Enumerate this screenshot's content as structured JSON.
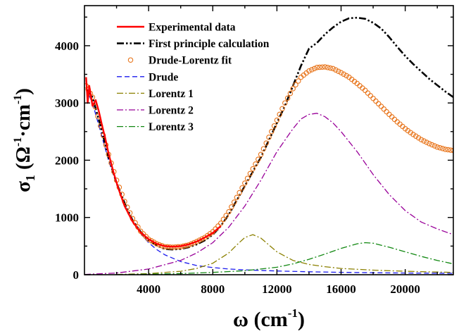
{
  "chart_data": {
    "type": "line",
    "title": "",
    "xlim": [
      0,
      23000
    ],
    "ylim": [
      0,
      4700
    ],
    "x_ticks": [
      "4000",
      "8000",
      "12000",
      "16000",
      "20000"
    ],
    "y_ticks": [
      "0",
      "1000",
      "2000",
      "3000",
      "4000"
    ],
    "xlabel": {
      "sym": "ω",
      "open": " (cm",
      "sup": "-1",
      "close": ")"
    },
    "ylabel": {
      "sym": "σ",
      "sub": "1",
      "open": " (Ω",
      "sup1": "-1",
      "dot": "·cm",
      "sup2": "-1",
      "close": ")"
    },
    "legend_position": "top-left",
    "series": [
      {
        "name": "Experimental data",
        "color": "#ff0000",
        "style": "solid",
        "x": [
          100,
          200,
          300,
          500,
          700,
          900,
          1100,
          1300,
          1500,
          1800,
          2100,
          2500,
          3000,
          3500,
          4000,
          4500,
          5000,
          5500,
          6000,
          6500,
          7000,
          7500,
          8000,
          8500
        ],
        "y": [
          3450,
          3000,
          3300,
          2950,
          3050,
          2850,
          2600,
          2380,
          2120,
          1800,
          1520,
          1200,
          930,
          740,
          620,
          540,
          500,
          490,
          500,
          530,
          580,
          650,
          730,
          850
        ]
      },
      {
        "name": "First principle calculation",
        "color": "#000000",
        "style": "dash-dot-dot",
        "x": [
          100,
          500,
          1000,
          1500,
          2000,
          2500,
          3000,
          3500,
          4000,
          4500,
          5000,
          5500,
          6000,
          6500,
          7000,
          7500,
          8000,
          8500,
          9000,
          9500,
          10000,
          10500,
          11000,
          11500,
          12000,
          12500,
          13000,
          13500,
          14000,
          14500,
          15000,
          15500,
          16000,
          16500,
          17000,
          17500,
          18000,
          18500,
          19000,
          19500,
          20000,
          20500,
          21000,
          21500,
          22000,
          22500,
          23000
        ],
        "y": [
          3250,
          3100,
          2600,
          2050,
          1600,
          1250,
          950,
          750,
          600,
          510,
          450,
          440,
          450,
          480,
          530,
          600,
          700,
          850,
          1050,
          1300,
          1550,
          1800,
          2050,
          2350,
          2650,
          2950,
          3300,
          3650,
          3950,
          4050,
          4200,
          4320,
          4420,
          4480,
          4490,
          4470,
          4400,
          4300,
          4150,
          3980,
          3820,
          3680,
          3550,
          3420,
          3310,
          3200,
          3100
        ]
      },
      {
        "name": "Drude-Lorentz fit",
        "color": "#e8741a",
        "style": "open-circle",
        "x": [
          100,
          500,
          1000,
          1500,
          2000,
          2500,
          3000,
          3500,
          4000,
          4500,
          5000,
          5500,
          6000,
          6500,
          7000,
          7500,
          8000,
          8500,
          9000,
          9500,
          10000,
          10500,
          11000,
          11500,
          12000,
          12500,
          13000,
          13500,
          14000,
          14500,
          15000,
          15500,
          16000,
          16500,
          17000,
          17500,
          18000,
          18500,
          19000,
          19500,
          20000,
          20500,
          21000,
          21500,
          22000,
          22500,
          23000
        ],
        "y": [
          3300,
          3100,
          2600,
          2100,
          1650,
          1280,
          980,
          760,
          620,
          540,
          490,
          480,
          490,
          520,
          580,
          650,
          750,
          900,
          1100,
          1350,
          1600,
          1850,
          2100,
          2400,
          2700,
          3000,
          3250,
          3450,
          3560,
          3620,
          3630,
          3600,
          3530,
          3450,
          3340,
          3220,
          3080,
          2940,
          2800,
          2670,
          2550,
          2450,
          2360,
          2290,
          2230,
          2190,
          2170
        ]
      },
      {
        "name": "Drude",
        "color": "#1a1aee",
        "style": "dashed",
        "x": [
          100,
          500,
          1000,
          1500,
          2000,
          2500,
          3000,
          3500,
          4000,
          4500,
          5000,
          6000,
          7000,
          8000,
          9000,
          10000,
          12000,
          14000,
          16000,
          18000,
          20000,
          23000
        ],
        "y": [
          3250,
          3000,
          2500,
          2000,
          1580,
          1220,
          940,
          720,
          560,
          440,
          350,
          230,
          160,
          125,
          100,
          85,
          65,
          52,
          42,
          35,
          30,
          25
        ]
      },
      {
        "name": "Lorentz 1",
        "color": "#8b8000",
        "style": "dash-dot",
        "x": [
          2000,
          4000,
          6000,
          7000,
          8000,
          9000,
          9500,
          10000,
          10500,
          11000,
          11500,
          12000,
          13000,
          14000,
          15000,
          16000,
          18000,
          20000,
          23000
        ],
        "y": [
          5,
          20,
          60,
          110,
          200,
          380,
          520,
          650,
          700,
          640,
          520,
          400,
          250,
          180,
          140,
          110,
          80,
          60,
          40
        ]
      },
      {
        "name": "Lorentz 2",
        "color": "#990099",
        "style": "dash-dot",
        "x": [
          0,
          2000,
          4000,
          6000,
          7000,
          8000,
          9000,
          10000,
          11000,
          12000,
          13000,
          13500,
          14000,
          14500,
          15000,
          15500,
          16000,
          17000,
          18000,
          19000,
          20000,
          21000,
          22000,
          23000
        ],
        "y": [
          5,
          30,
          100,
          250,
          380,
          560,
          830,
          1200,
          1650,
          2150,
          2550,
          2720,
          2800,
          2820,
          2760,
          2650,
          2500,
          2150,
          1750,
          1400,
          1120,
          920,
          800,
          700
        ]
      },
      {
        "name": "Lorentz 3",
        "color": "#118811",
        "style": "dash-dot",
        "x": [
          2000,
          6000,
          8000,
          10000,
          12000,
          13000,
          14000,
          15000,
          16000,
          17000,
          17500,
          18000,
          19000,
          20000,
          21000,
          22000,
          23000
        ],
        "y": [
          0,
          20,
          40,
          70,
          130,
          190,
          270,
          360,
          460,
          540,
          560,
          550,
          480,
          400,
          320,
          250,
          190
        ]
      }
    ]
  }
}
